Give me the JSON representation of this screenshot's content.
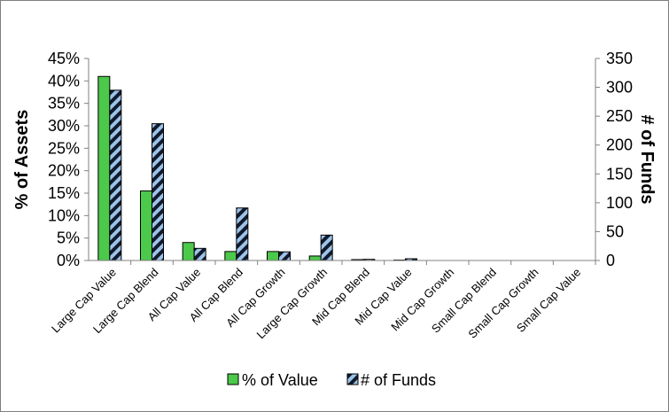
{
  "chart_data": {
    "type": "bar",
    "categories": [
      "Large Cap Value",
      "Large Cap Blend",
      "All Cap Value",
      "All Cap Blend",
      "All Cap Growth",
      "Large Cap Growth",
      "Mid Cap Blend",
      "Mid Cap Value",
      "Mid Cap Growth",
      "Small Cap Blend",
      "Small Cap Growth",
      "Small Cap Value"
    ],
    "series": [
      {
        "name": "% of Value",
        "axis": "left",
        "color": "#4cc84a",
        "values": [
          0.41,
          0.155,
          0.04,
          0.02,
          0.02,
          0.01,
          0.002,
          0.001,
          0,
          0,
          0,
          0
        ]
      },
      {
        "name": "# of Funds",
        "axis": "right",
        "color": "#9ec3e8",
        "pattern": "black-diagonal-stripes",
        "values": [
          295,
          237,
          21,
          91,
          15,
          44,
          2,
          3,
          0,
          0,
          0,
          0
        ]
      }
    ],
    "ylabel_left": "% of Assets",
    "ylabel_right": "# of Funds",
    "ylim_left": [
      0,
      0.45
    ],
    "ylim_right": [
      0,
      350
    ],
    "yticks_left": [
      "0%",
      "5%",
      "10%",
      "15%",
      "20%",
      "25%",
      "30%",
      "35%",
      "40%",
      "45%"
    ],
    "yticks_right": [
      "0",
      "50",
      "100",
      "150",
      "200",
      "250",
      "300",
      "350"
    ],
    "grid": false,
    "legend_position": "bottom"
  }
}
